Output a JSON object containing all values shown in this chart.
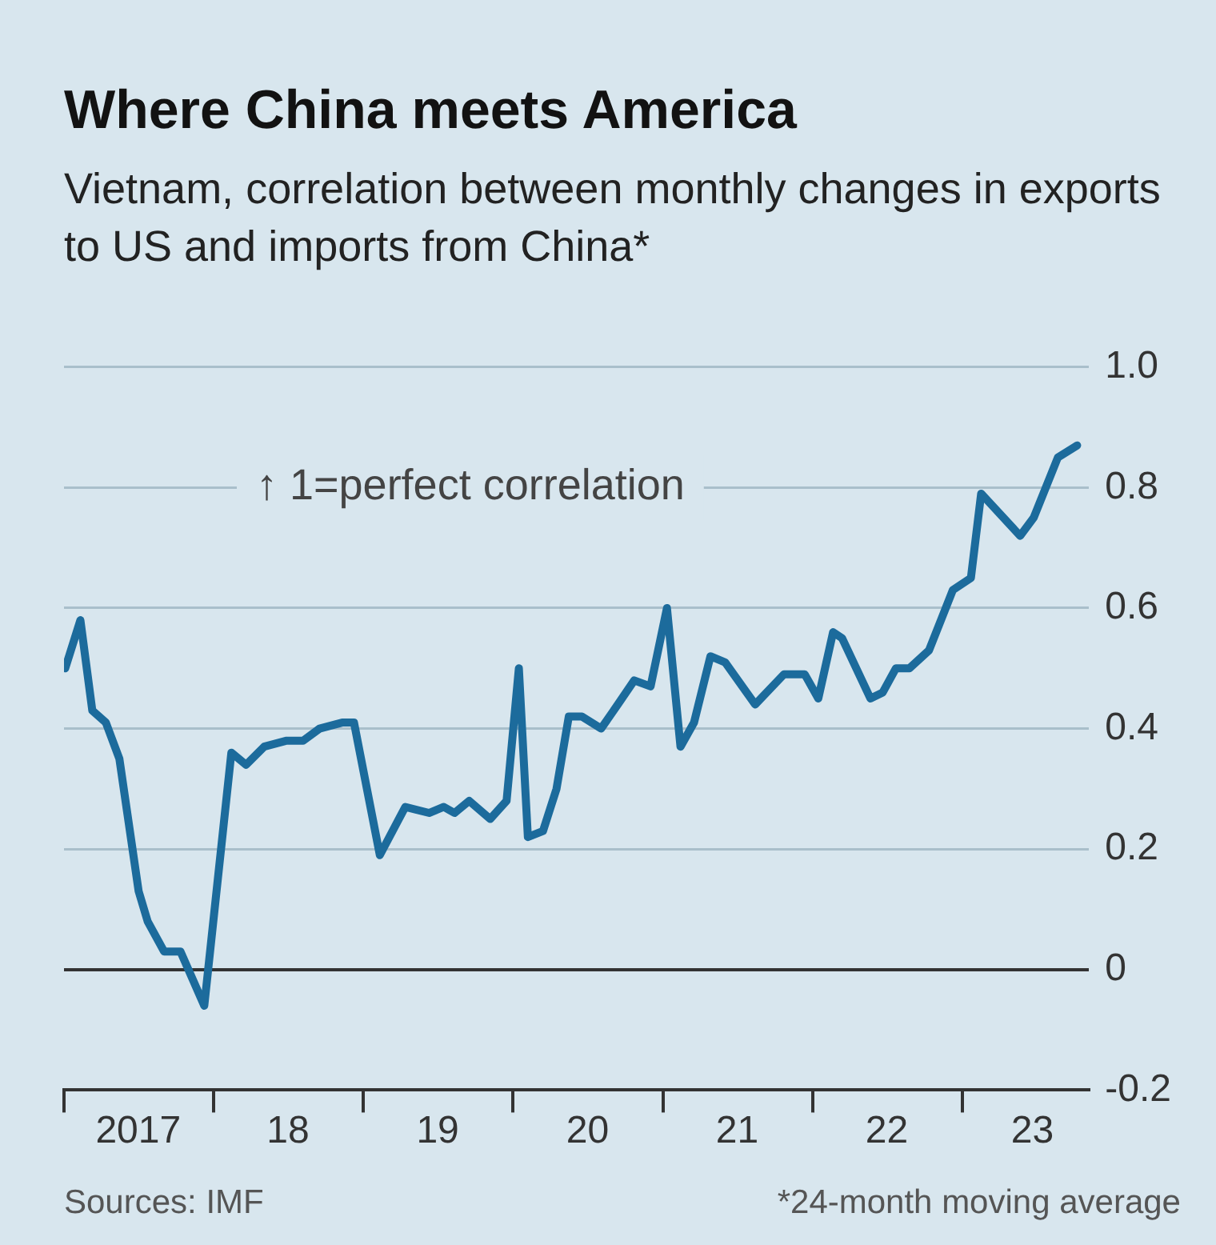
{
  "chart_data": {
    "type": "line",
    "title": "Where China meets America",
    "subtitle": "Vietnam, correlation between monthly changes in exports to US and imports from China*",
    "x": [
      "2017-01-04",
      "2017-02-10",
      "2017-03-11",
      "2017-04-13",
      "2017-05-16",
      "2017-07-02",
      "2017-07-24",
      "2017-09-02",
      "2017-10-12",
      "2017-12-09",
      "2018-02-13",
      "2018-03-21",
      "2018-05-04",
      "2018-06-28",
      "2018-08-07",
      "2018-09-16",
      "2018-11-10",
      "2018-12-09",
      "2019-02-10",
      "2019-04-13",
      "2019-06-10",
      "2019-07-16",
      "2019-08-11",
      "2019-09-16",
      "2019-11-06",
      "2019-12-16",
      "2020-01-15",
      "2020-02-06",
      "2020-03-14",
      "2020-04-16",
      "2020-05-16",
      "2020-06-17",
      "2020-08-03",
      "2020-09-13",
      "2020-10-23",
      "2020-12-02",
      "2021-01-11",
      "2021-02-13",
      "2021-03-18",
      "2021-04-27",
      "2021-06-02",
      "2021-08-14",
      "2021-10-23",
      "2021-12-13",
      "2022-01-15",
      "2022-02-20",
      "2022-03-14",
      "2022-05-22",
      "2022-06-21",
      "2022-07-23",
      "2022-08-25",
      "2022-10-12",
      "2022-12-09",
      "2023-01-22",
      "2023-02-16",
      "2023-05-22",
      "2023-06-24",
      "2023-08-22",
      "2023-10-08"
    ],
    "series": [
      {
        "color": "#1c6b9c",
        "values": [
          0.5,
          0.58,
          0.43,
          0.41,
          0.35,
          0.13,
          0.08,
          0.03,
          0.03,
          -0.06,
          0.36,
          0.34,
          0.37,
          0.38,
          0.38,
          0.4,
          0.41,
          0.41,
          0.19,
          0.27,
          0.26,
          0.27,
          0.26,
          0.28,
          0.25,
          0.28,
          0.5,
          0.22,
          0.23,
          0.3,
          0.42,
          0.42,
          0.4,
          0.44,
          0.48,
          0.47,
          0.6,
          0.37,
          0.41,
          0.52,
          0.51,
          0.44,
          0.49,
          0.49,
          0.45,
          0.56,
          0.55,
          0.45,
          0.46,
          0.5,
          0.5,
          0.53,
          0.63,
          0.65,
          0.79,
          0.72,
          0.75,
          0.85,
          0.87
        ]
      }
    ],
    "xlim": [
      "2017-01-01",
      "2023-11-06"
    ],
    "xticks": [
      {
        "value": "2017-01-01",
        "label": null
      },
      {
        "value": "2017-07-01",
        "label": "2017"
      },
      {
        "value": "2018-01-01",
        "label": null
      },
      {
        "value": "2018-07-01",
        "label": "18"
      },
      {
        "value": "2019-01-01",
        "label": null
      },
      {
        "value": "2019-07-01",
        "label": "19"
      },
      {
        "value": "2020-01-01",
        "label": null
      },
      {
        "value": "2020-07-01",
        "label": "20"
      },
      {
        "value": "2021-01-01",
        "label": null
      },
      {
        "value": "2021-07-01",
        "label": "21"
      },
      {
        "value": "2022-01-01",
        "label": null
      },
      {
        "value": "2022-07-01",
        "label": "22"
      },
      {
        "value": "2023-01-01",
        "label": null
      },
      {
        "value": "2023-06-21",
        "label": "23"
      }
    ],
    "ylim": [
      -0.2,
      1
    ],
    "yticks": [
      -0.2,
      {
        "value": 0,
        "label": "0"
      },
      0.2,
      0.4,
      0.6,
      0.8,
      {
        "value": 1,
        "label": "1.0"
      }
    ],
    "grid": "y",
    "legend": false,
    "marker": "none",
    "line_style": "solid",
    "annotations": [
      "↑ 1=perfect correlation",
      "Sources: IMF",
      "*24-month moving average"
    ]
  }
}
